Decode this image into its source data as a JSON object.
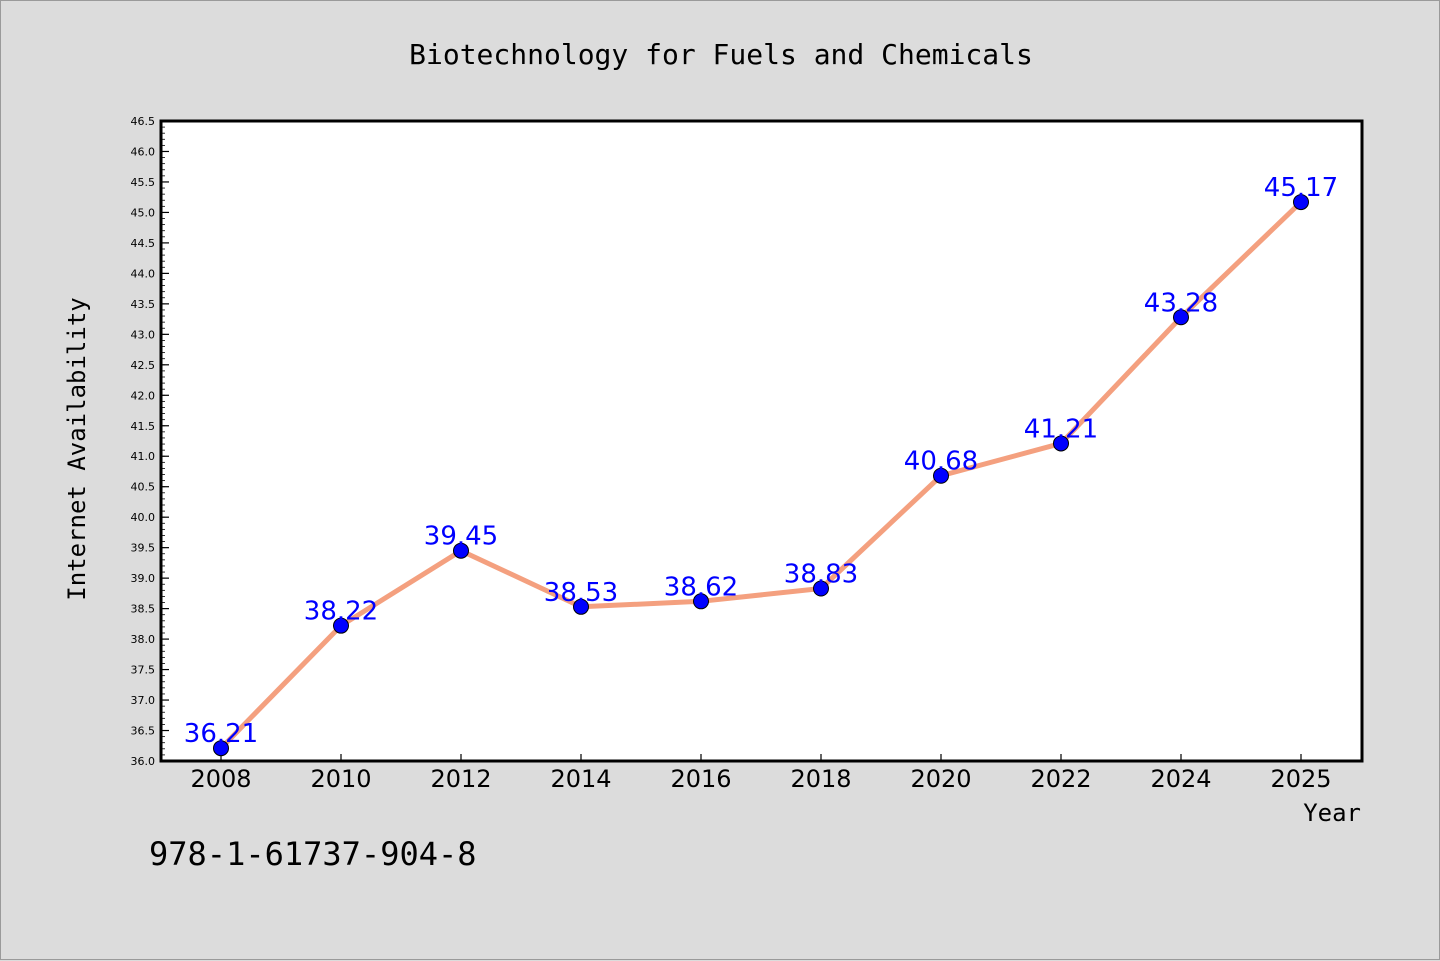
{
  "chart_data": {
    "type": "line",
    "title": "Biotechnology for Fuels and Chemicals",
    "xlabel": "Year",
    "ylabel": "Internet Availability",
    "categories": [
      "2008",
      "2010",
      "2012",
      "2014",
      "2016",
      "2018",
      "2020",
      "2022",
      "2024",
      "2025"
    ],
    "series": [
      {
        "values": [
          36.21,
          38.22,
          39.45,
          38.53,
          38.62,
          38.83,
          40.68,
          41.21,
          43.28,
          45.17
        ],
        "color": "#f4a07f",
        "marker_color": "#0000ff"
      }
    ],
    "data_labels": [
      "36.21",
      "38.22",
      "39.45",
      "38.53",
      "38.62",
      "38.83",
      "40.68",
      "41.21",
      "43.28",
      "45.17"
    ],
    "ylim": [
      36.0,
      46.5
    ],
    "yticks": [
      "36.0",
      "36.5",
      "37.0",
      "37.5",
      "38.0",
      "38.5",
      "39.0",
      "39.5",
      "40.0",
      "40.5",
      "41.0",
      "41.5",
      "42.0",
      "42.5",
      "43.0",
      "43.5",
      "44.0",
      "44.5",
      "45.0",
      "45.5",
      "46.0",
      "46.5"
    ],
    "grid": false,
    "legend": "none"
  },
  "caption": "978-1-61737-904-8",
  "colors": {
    "background": "#dcdcdc",
    "plot_area": "#ffffff",
    "line": "#f4a07f",
    "marker": "#0000ff",
    "data_label": "#0000ff"
  }
}
